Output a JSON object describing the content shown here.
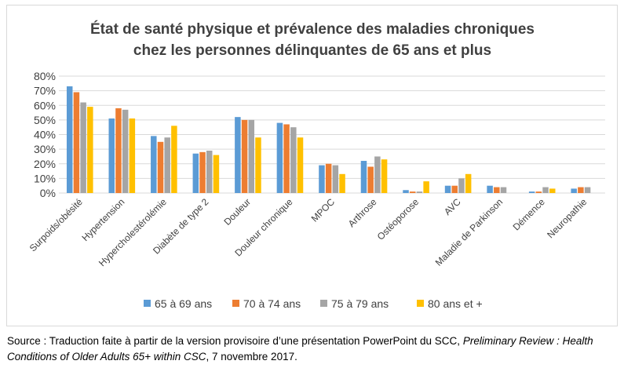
{
  "chart_data": {
    "type": "bar",
    "title_lines": [
      "État de santé physique et prévalence des maladies chroniques",
      "chez les personnes délinquantes de 65 ans et plus"
    ],
    "categories": [
      "Surpoids/obésité",
      "Hypertension",
      "Hypercholestérolémie",
      "Diabète de type 2",
      "Douleur",
      "Douleur chronique",
      "MPOC",
      "Arthrose",
      "Ostéoporose",
      "AVC",
      "Maladie de Parkinson",
      "Démence",
      "Neuropathie"
    ],
    "series": [
      {
        "name": "65 à 69 ans",
        "color": "#5b9bd5",
        "values": [
          73,
          51,
          39,
          27,
          52,
          48,
          19,
          22,
          2,
          5,
          5,
          1,
          3
        ]
      },
      {
        "name": "70 à 74 ans",
        "color": "#ed7d31",
        "values": [
          69,
          58,
          35,
          28,
          50,
          47,
          20,
          18,
          1,
          5,
          4,
          1,
          4
        ]
      },
      {
        "name": "75 à 79 ans",
        "color": "#a5a5a5",
        "values": [
          62,
          57,
          38,
          29,
          50,
          45,
          19,
          25,
          1,
          10,
          4,
          4,
          4
        ]
      },
      {
        "name": "80 ans et +",
        "color": "#ffc000",
        "values": [
          59,
          51,
          46,
          26,
          38,
          38,
          13,
          23,
          8,
          13,
          0,
          3,
          0
        ]
      }
    ],
    "ylim": [
      0,
      80
    ],
    "ytick_labels": [
      "0%",
      "10%",
      "20%",
      "30%",
      "40%",
      "50%",
      "60%",
      "70%",
      "80%"
    ],
    "grid": true,
    "legend_position": "bottom"
  },
  "source": {
    "prefix": "Source : Traduction faite à partir de la version provisoire d’une présentation PowerPoint du SCC, ",
    "italic": "Preliminary Review : Health Conditions of Older Adults 65+ within CSC",
    "suffix": ", 7 novembre 2017."
  }
}
